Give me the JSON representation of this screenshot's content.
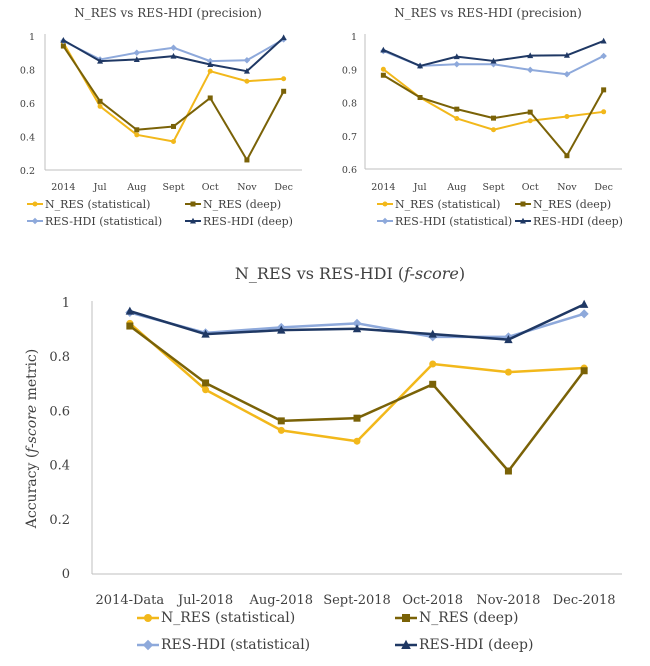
{
  "chart_data": [
    {
      "id": "top-left",
      "type": "line",
      "title": "N_RES vs RES-HDI (precision)",
      "title_italic": "",
      "ylabel": "",
      "ylabel_italic": "",
      "ylabel_suffix": "",
      "categories": [
        "2014",
        "Jul",
        "Aug",
        "Sept",
        "Oct",
        "Nov",
        "Dec"
      ],
      "ylim": [
        0.2,
        1.0
      ],
      "yticks": [
        "0.2",
        "0.4",
        "0.6",
        "0.8",
        "1"
      ],
      "ytick_values": [
        0.2,
        0.4,
        0.6,
        0.8,
        1.0
      ],
      "series": [
        {
          "name": "N_RES (statistical)",
          "color": "#F2B81B",
          "marker": "circle",
          "values": [
            0.96,
            0.58,
            0.41,
            0.37,
            0.79,
            0.73,
            0.745
          ]
        },
        {
          "name": "N_RES (deep)",
          "color": "#7A6207",
          "marker": "square",
          "values": [
            0.94,
            0.61,
            0.44,
            0.46,
            0.63,
            0.26,
            0.67
          ]
        },
        {
          "name": "RES-HDI (statistical)",
          "color": "#8EA9DB",
          "marker": "diamond",
          "values": [
            0.97,
            0.86,
            0.9,
            0.93,
            0.85,
            0.855,
            0.98
          ]
        },
        {
          "name": "RES-HDI (deep)",
          "color": "#1F3864",
          "marker": "triangle",
          "values": [
            0.975,
            0.85,
            0.86,
            0.88,
            0.83,
            0.79,
            0.99
          ]
        }
      ]
    },
    {
      "id": "top-right",
      "type": "line",
      "title": "N_RES vs RES-HDI (precision)",
      "title_italic": "",
      "ylabel": "",
      "ylabel_italic": "",
      "ylabel_suffix": "",
      "categories": [
        "2014",
        "Jul",
        "Aug",
        "Sept",
        "Oct",
        "Nov",
        "Dec"
      ],
      "ylim": [
        0.6,
        1.0
      ],
      "yticks": [
        "0.6",
        "0.7",
        "0.8",
        "0.9",
        "1"
      ],
      "ytick_values": [
        0.6,
        0.7,
        0.8,
        0.9,
        1.0
      ],
      "series": [
        {
          "name": "N_RES (statistical)",
          "color": "#F2B81B",
          "marker": "circle",
          "values": [
            0.9,
            0.815,
            0.752,
            0.718,
            0.745,
            0.758,
            0.772
          ]
        },
        {
          "name": "N_RES (deep)",
          "color": "#7A6207",
          "marker": "square",
          "values": [
            0.882,
            0.815,
            0.78,
            0.753,
            0.771,
            0.64,
            0.838
          ]
        },
        {
          "name": "RES-HDI (statistical)",
          "color": "#8EA9DB",
          "marker": "diamond",
          "values": [
            0.955,
            0.91,
            0.915,
            0.915,
            0.898,
            0.885,
            0.94
          ]
        },
        {
          "name": "RES-HDI (deep)",
          "color": "#1F3864",
          "marker": "triangle",
          "values": [
            0.958,
            0.91,
            0.938,
            0.925,
            0.941,
            0.942,
            0.985
          ]
        }
      ]
    },
    {
      "id": "bottom",
      "type": "line",
      "title": "N_RES vs RES-HDI (",
      "title_italic": "f-score",
      "title_suffix": ")",
      "ylabel": "Accuracy (",
      "ylabel_italic": "f-score",
      "ylabel_suffix": " metric)",
      "categories": [
        "2014-Data",
        "Jul-2018",
        "Aug-2018",
        "Sept-2018",
        "Oct-2018",
        "Nov-2018",
        "Dec-2018"
      ],
      "ylim": [
        0,
        1.0
      ],
      "yticks": [
        "0",
        "0.2",
        "0.4",
        "0.6",
        "0.8",
        "1"
      ],
      "ytick_values": [
        0,
        0.2,
        0.4,
        0.6,
        0.8,
        1.0
      ],
      "series": [
        {
          "name": "N_RES (statistical)",
          "color": "#F2B81B",
          "marker": "circle",
          "values": [
            0.925,
            0.68,
            0.53,
            0.49,
            0.775,
            0.745,
            0.76
          ]
        },
        {
          "name": "N_RES (deep)",
          "color": "#7A6207",
          "marker": "square",
          "values": [
            0.915,
            0.705,
            0.565,
            0.575,
            0.7,
            0.38,
            0.75
          ]
        },
        {
          "name": "RES-HDI (statistical)",
          "color": "#8EA9DB",
          "marker": "diamond",
          "values": [
            0.965,
            0.89,
            0.91,
            0.925,
            0.875,
            0.875,
            0.96
          ]
        },
        {
          "name": "RES-HDI (deep)",
          "color": "#1F3864",
          "marker": "triangle",
          "values": [
            0.97,
            0.885,
            0.9,
            0.905,
            0.885,
            0.865,
            0.995
          ]
        }
      ]
    }
  ]
}
